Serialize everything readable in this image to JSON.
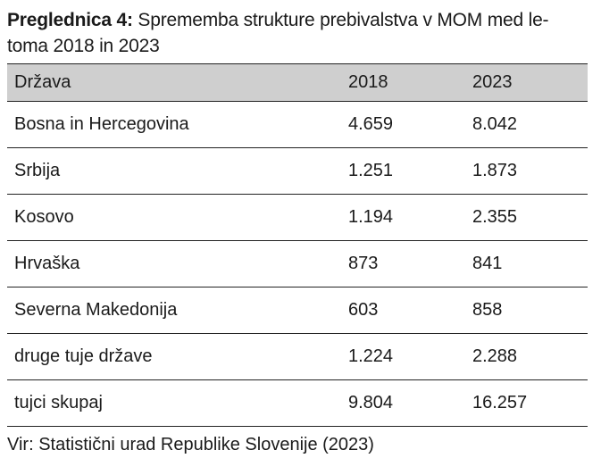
{
  "caption": {
    "label": "Preglednica 4:",
    "text": "Sprememba strukture prebivalstva v MOM med le-toma 2018 in 2023"
  },
  "table": {
    "headers": [
      "Država",
      "2018",
      "2023"
    ],
    "rows": [
      [
        "Bosna in Hercegovina",
        "4.659",
        "8.042"
      ],
      [
        "Srbija",
        "1.251",
        "1.873"
      ],
      [
        "Kosovo",
        "1.194",
        "2.355"
      ],
      [
        "Hrvaška",
        "873",
        "841"
      ],
      [
        "Severna Makedonija",
        "603",
        "858"
      ],
      [
        "druge tuje države",
        "1.224",
        "2.288"
      ],
      [
        "tujci skupaj",
        "9.804",
        "16.257"
      ]
    ]
  },
  "source": "Vir: Statistični urad Republike Slovenije (2023)"
}
